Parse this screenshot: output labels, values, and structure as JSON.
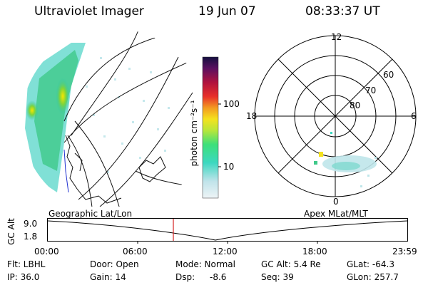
{
  "header": {
    "instrument": "Ultraviolet Imager",
    "date": "19 Jun 07",
    "time": "08:33:37 UT"
  },
  "colorbar": {
    "unit_label": "photon cm⁻²s⁻¹",
    "ticks": [
      "100",
      "10"
    ]
  },
  "polar_plot": {
    "mlt_labels": [
      "12",
      "18",
      "6",
      "0"
    ],
    "lat_labels": [
      "60",
      "70",
      "80"
    ]
  },
  "left_caption": "Geographic Lat/Lon",
  "right_caption": "Apex MLat/MLT",
  "altitude_plot": {
    "ylabel": "GC Alt",
    "yticks": [
      "9.0",
      "1.8"
    ],
    "xticks": [
      "00:00",
      "06:00",
      "12:00",
      "18:00",
      "23:59"
    ],
    "cursor_color": "#d62020"
  },
  "footer": {
    "flt": "Flt: LBHL",
    "ip": "IP: 36.0",
    "door": "Door: Open",
    "gain": "Gain: 14",
    "mode": "Mode: Normal",
    "dsp_label": "Dsp:",
    "dsp_value": "-8.6",
    "gc_alt": "GC Alt: 5.4 Re",
    "seq": "Seq: 39",
    "glat": "GLat: -64.3",
    "glon": "GLon: 257.7"
  }
}
